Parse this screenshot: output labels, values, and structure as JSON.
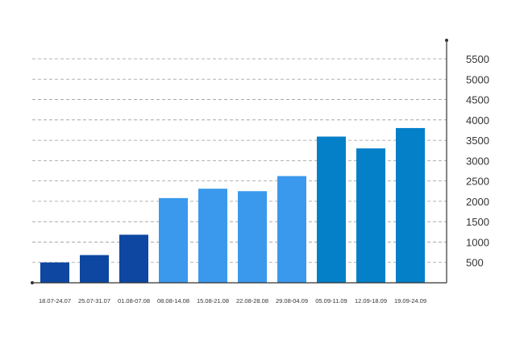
{
  "chart_data": {
    "type": "bar",
    "title": "",
    "xlabel": "",
    "ylabel": "",
    "categories": [
      "18.07-24.07",
      "25.07-31.07",
      "01.08-07.08",
      "08.08-14.08",
      "15.08-21.08",
      "22.08-28.08",
      "29.08-04.09",
      "05.09-11.09",
      "12.09-18.09",
      "19.09-24.09"
    ],
    "values": [
      500,
      680,
      1180,
      2080,
      2310,
      2250,
      2620,
      3590,
      3300,
      3800
    ],
    "colors": [
      "#0d47a1",
      "#0d47a1",
      "#0d47a1",
      "#3a99ec",
      "#3a99ec",
      "#3a99ec",
      "#3a99ec",
      "#0480c8",
      "#0480c8",
      "#0480c8"
    ],
    "ylim": [
      0,
      5500
    ],
    "yticks": [
      500,
      1000,
      1500,
      2000,
      2500,
      3000,
      3500,
      4000,
      4500,
      5000,
      5500
    ],
    "y_axis_position": "right",
    "grid": true,
    "legend": "none"
  }
}
